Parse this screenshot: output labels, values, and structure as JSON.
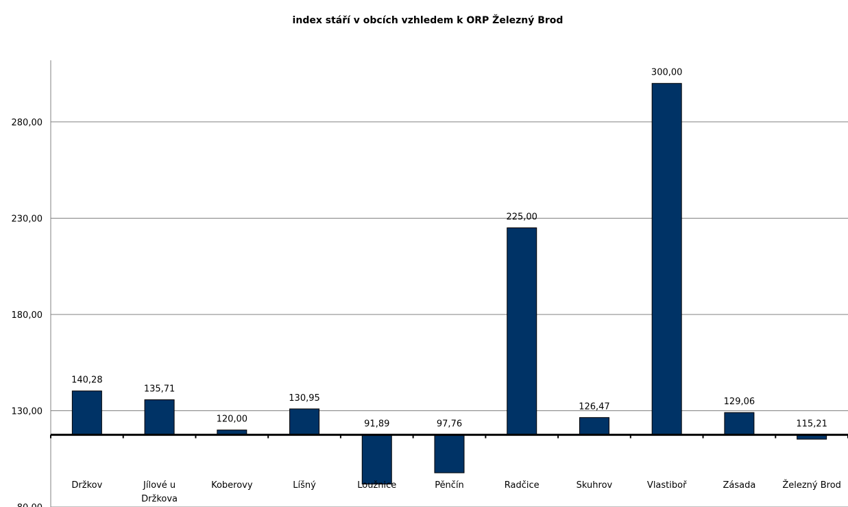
{
  "chart_data": {
    "type": "bar",
    "title": "index stáří v obcích vzhledem k ORP Železný Brod",
    "categories": [
      "Držkov",
      "Jílové u Držkova",
      "Koberovy",
      "Líšný",
      "Loužnice",
      "Pěnčín",
      "Radčice",
      "Skuhrov",
      "Vlastiboř",
      "Zásada",
      "Železný Brod"
    ],
    "values": [
      140.28,
      135.71,
      120.0,
      130.95,
      91.89,
      97.76,
      225.0,
      126.47,
      300.0,
      129.06,
      115.21
    ],
    "value_labels": [
      "140,28",
      "135,71",
      "120,00",
      "130,95",
      "91,89",
      "97,76",
      "225,00",
      "126,47",
      "300,00",
      "129,06",
      "115,21"
    ],
    "baseline": 117.5,
    "yticks": [
      80,
      130,
      180,
      230,
      280
    ],
    "ytick_labels": [
      "80,00",
      "130,00",
      "180,00",
      "230,00",
      "280,00"
    ],
    "ylim": [
      80,
      312
    ],
    "grid": true,
    "bar_color": "#003366",
    "xlabel": "",
    "ylabel": ""
  }
}
